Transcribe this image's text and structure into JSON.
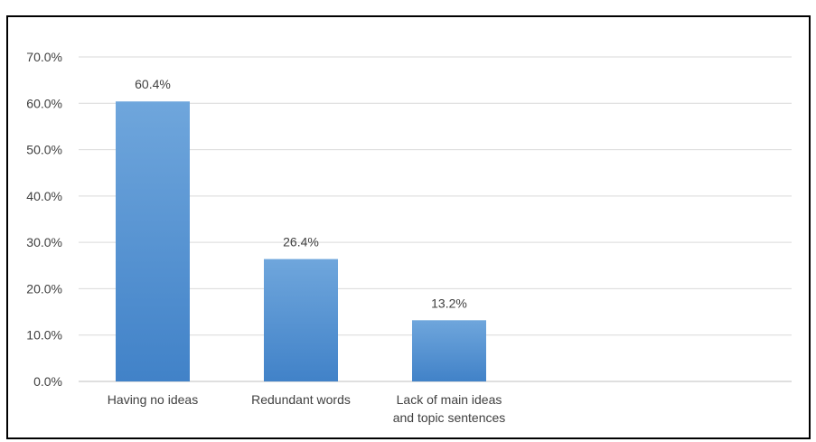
{
  "chart_data": {
    "type": "bar",
    "categories": [
      [
        "Having no ideas"
      ],
      [
        "Redundant words"
      ],
      [
        "Lack of main ideas",
        "and topic sentences"
      ]
    ],
    "values": [
      60.4,
      26.4,
      13.2
    ],
    "value_labels": [
      "60.4%",
      "26.4%",
      "13.2%"
    ],
    "ylim": [
      0,
      70
    ],
    "ytick_values": [
      0,
      10,
      20,
      30,
      40,
      50,
      60,
      70
    ],
    "ytick_labels": [
      "0.0%",
      "10.0%",
      "20.0%",
      "30.0%",
      "40.0%",
      "50.0%",
      "60.0%",
      "70.0%"
    ],
    "grid": true,
    "legend": "none",
    "colors": {
      "bar_top": "#6FA6DC",
      "bar_bottom": "#4182C8",
      "grid": "#D9D9D9",
      "axis": "#BFBFBF"
    }
  }
}
